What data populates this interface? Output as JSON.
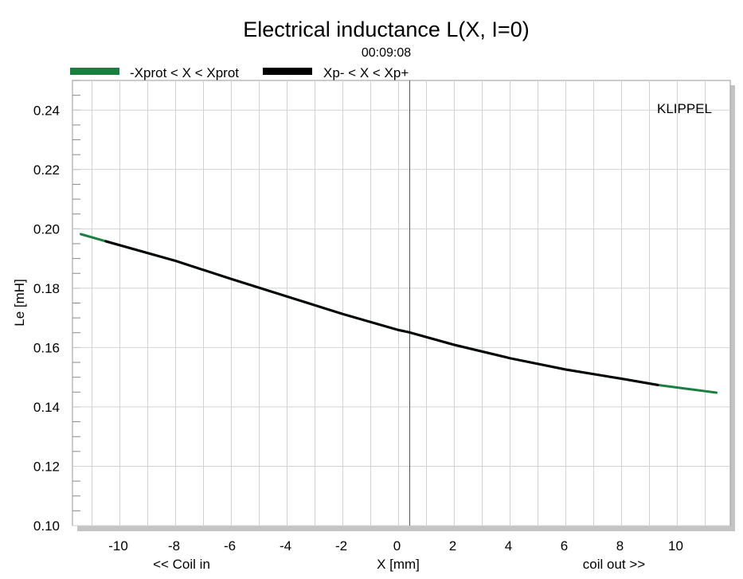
{
  "chart_data": {
    "type": "line",
    "title": "Electrical inductance L(X, I=0)",
    "subtitle": "00:09:08",
    "xlabel": "X [mm]",
    "ylabel": "Le [mH]",
    "x_annotation_left": "<< Coil in",
    "x_annotation_right": "coil out >>",
    "watermark": "KLIPPEL",
    "xlim": [
      -11.7,
      11.9
    ],
    "ylim": [
      0.1,
      0.25
    ],
    "xticks": [
      -10,
      -8,
      -6,
      -4,
      -2,
      0,
      2,
      4,
      6,
      8,
      10
    ],
    "xtick_labels": [
      "-10",
      "-8",
      "-6",
      "-4",
      "-2",
      "0",
      "2",
      "4",
      "6",
      "8",
      "10"
    ],
    "yticks": [
      0.1,
      0.12,
      0.14,
      0.16,
      0.18,
      0.2,
      0.22,
      0.24
    ],
    "ytick_labels": [
      "0.10",
      "0.12",
      "0.14",
      "0.16",
      "0.18",
      "0.20",
      "0.22",
      "0.24"
    ],
    "grid": true,
    "legend_position": "top-left",
    "reference_x": 0.4,
    "series": [
      {
        "name": "-Xprot < X < Xprot",
        "color": "#1a8040",
        "x": [
          -11.4,
          -10.5,
          -8,
          -6,
          -4,
          -2,
          0,
          0.4,
          2,
          4,
          6,
          8,
          9.3,
          10.5,
          11.4
        ],
        "y": [
          0.1982,
          0.1958,
          0.1892,
          0.1831,
          0.1772,
          0.1713,
          0.1659,
          0.1651,
          0.1609,
          0.1564,
          0.1526,
          0.1495,
          0.1474,
          0.1459,
          0.1448
        ]
      },
      {
        "name": "Xp- < X < Xp+",
        "color": "#000000",
        "x": [
          -10.5,
          -8,
          -6,
          -4,
          -2,
          0,
          0.4,
          2,
          4,
          6,
          8,
          9.3
        ],
        "y": [
          0.1958,
          0.1892,
          0.1831,
          0.1772,
          0.1713,
          0.1659,
          0.1651,
          0.1609,
          0.1564,
          0.1526,
          0.1495,
          0.1474
        ]
      }
    ]
  }
}
